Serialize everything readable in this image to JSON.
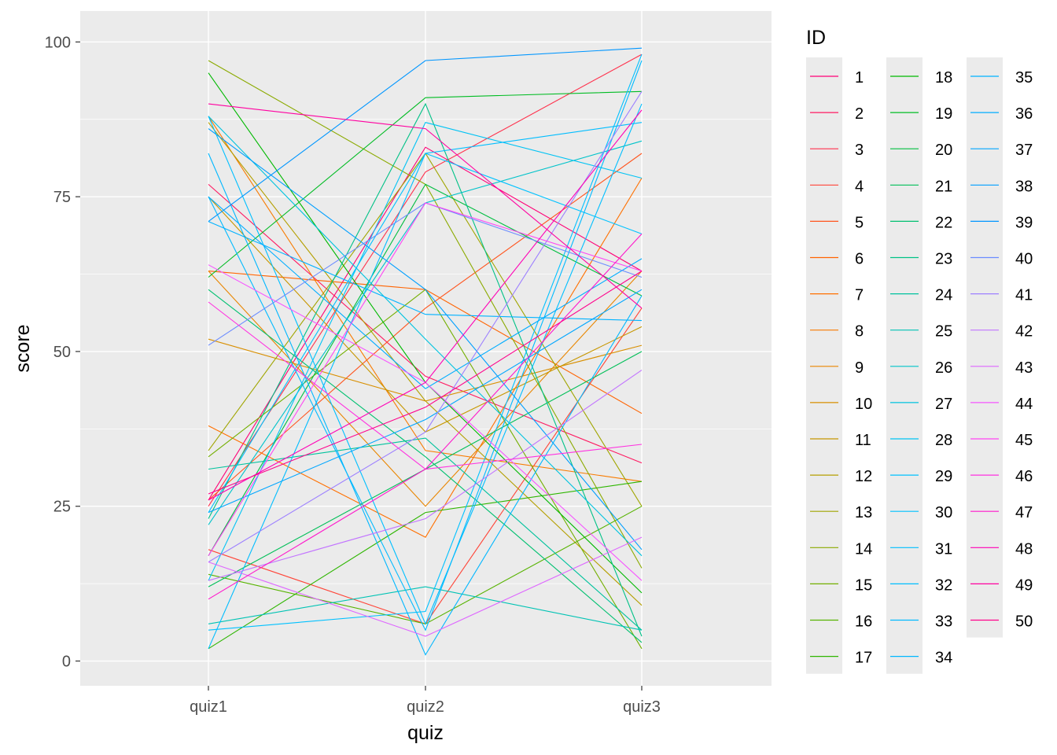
{
  "chart_data": {
    "type": "line",
    "title": "",
    "xlabel": "quiz",
    "ylabel": "score",
    "categories": [
      "quiz1",
      "quiz2",
      "quiz3"
    ],
    "ylim": [
      -4,
      105
    ],
    "yticks": [
      0,
      25,
      50,
      75,
      100
    ],
    "grid": true,
    "legend": {
      "title": "ID",
      "placement": "right",
      "columns": 3
    },
    "palette": {
      "panel_bg": "#EBEBEB",
      "grid": "#FFFFFF",
      "tick_text": "#4D4D4D",
      "hcl_chroma": 100,
      "hcl_luminance": 65,
      "hue_start": 15
    },
    "series": [
      {
        "name": "1",
        "values": [
          26,
          83,
          63
        ]
      },
      {
        "name": "2",
        "values": [
          77,
          46,
          32
        ]
      },
      {
        "name": "3",
        "values": [
          25,
          79,
          98
        ]
      },
      {
        "name": "4",
        "values": [
          18,
          6,
          57
        ]
      },
      {
        "name": "5",
        "values": [
          26,
          57,
          82
        ]
      },
      {
        "name": "6",
        "values": [
          63,
          60,
          40
        ]
      },
      {
        "name": "7",
        "values": [
          38,
          20,
          78
        ]
      },
      {
        "name": "8",
        "values": [
          88,
          34,
          29
        ]
      },
      {
        "name": "9",
        "values": [
          63,
          25,
          63
        ]
      },
      {
        "name": "10",
        "values": [
          52,
          42,
          51
        ]
      },
      {
        "name": "11",
        "values": [
          75,
          37,
          54
        ]
      },
      {
        "name": "12",
        "values": [
          87,
          42,
          9
        ]
      },
      {
        "name": "13",
        "values": [
          34,
          82,
          25
        ]
      },
      {
        "name": "14",
        "values": [
          97,
          77,
          15
        ]
      },
      {
        "name": "15",
        "values": [
          33,
          60,
          2
        ]
      },
      {
        "name": "16",
        "values": [
          14,
          6,
          25
        ]
      },
      {
        "name": "17",
        "values": [
          2,
          24,
          29
        ]
      },
      {
        "name": "18",
        "values": [
          95,
          45,
          11
        ]
      },
      {
        "name": "19",
        "values": [
          62,
          91,
          92
        ]
      },
      {
        "name": "20",
        "values": [
          17,
          77,
          59
        ]
      },
      {
        "name": "21",
        "values": [
          12,
          31,
          50
        ]
      },
      {
        "name": "22",
        "values": [
          60,
          33,
          3
        ]
      },
      {
        "name": "23",
        "values": [
          23,
          90,
          4
        ]
      },
      {
        "name": "24",
        "values": [
          31,
          36,
          5
        ]
      },
      {
        "name": "25",
        "values": [
          6,
          12,
          5
        ]
      },
      {
        "name": "26",
        "values": [
          22,
          74,
          84
        ]
      },
      {
        "name": "27",
        "values": [
          88,
          52,
          17
        ]
      },
      {
        "name": "28",
        "values": [
          13,
          87,
          78
        ]
      },
      {
        "name": "29",
        "values": [
          24,
          82,
          69
        ]
      },
      {
        "name": "30",
        "values": [
          5,
          8,
          98
        ]
      },
      {
        "name": "31",
        "values": [
          88,
          6,
          90
        ]
      },
      {
        "name": "32",
        "values": [
          2,
          82,
          87
        ]
      },
      {
        "name": "33",
        "values": [
          75,
          5,
          97
        ]
      },
      {
        "name": "34",
        "values": [
          82,
          1,
          59
        ]
      },
      {
        "name": "35",
        "values": [
          71,
          56,
          55
        ]
      },
      {
        "name": "36",
        "values": [
          75,
          44,
          65
        ]
      },
      {
        "name": "37",
        "values": [
          24,
          39,
          60
        ]
      },
      {
        "name": "38",
        "values": [
          86,
          60,
          18
        ]
      },
      {
        "name": "39",
        "values": [
          71,
          97,
          99
        ]
      },
      {
        "name": "40",
        "values": [
          51,
          74,
          62
        ]
      },
      {
        "name": "41",
        "values": [
          16,
          37,
          92
        ]
      },
      {
        "name": "42",
        "values": [
          13,
          23,
          47
        ]
      },
      {
        "name": "43",
        "values": [
          16,
          4,
          20
        ]
      },
      {
        "name": "44",
        "values": [
          64,
          45,
          13
        ]
      },
      {
        "name": "45",
        "values": [
          17,
          74,
          63
        ]
      },
      {
        "name": "46",
        "values": [
          58,
          31,
          35
        ]
      },
      {
        "name": "47",
        "values": [
          10,
          31,
          69
        ]
      },
      {
        "name": "48",
        "values": [
          26,
          45,
          89
        ]
      },
      {
        "name": "49",
        "values": [
          90,
          86,
          57
        ]
      },
      {
        "name": "50",
        "values": [
          27,
          41,
          63
        ]
      }
    ]
  }
}
